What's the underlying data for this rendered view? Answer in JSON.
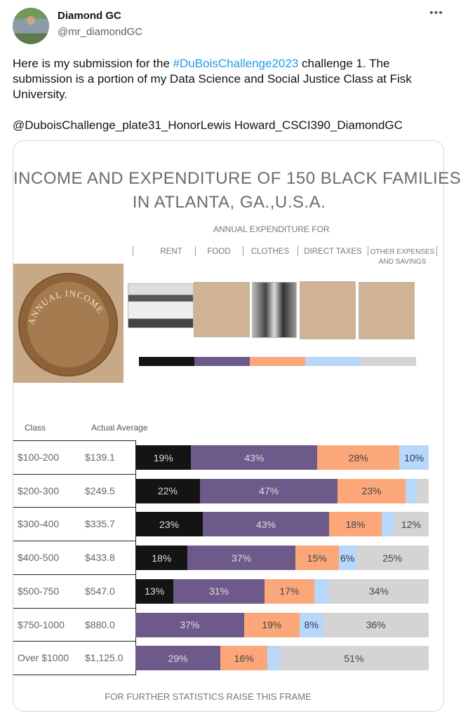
{
  "tweet": {
    "author_name": "Diamond GC",
    "author_handle": "@mr_diamondGC",
    "more_icon": "more-horizontal-icon",
    "text_before": "Here is my submission for the ",
    "hashtag": "#DuBoisChallenge2023",
    "text_after": " challenge 1. The submission is a portion of my Data Science and Social Justice Class at Fisk University.",
    "text_line2": "@DuboisChallenge_plate31_HonorLewis Howard_CSCI390_DiamondGC"
  },
  "colors": {
    "rent": "#141414",
    "food": "#6e5a8a",
    "clothes": "#fba77a",
    "taxes": "#b7d8fb",
    "other": "#d4d4d4"
  },
  "chart_data": {
    "type": "bar",
    "orientation": "horizontal-stacked-100",
    "title_line1": "INCOME AND EXPENDITURE OF 150 BLACK FAMILIES",
    "title_line2": "IN ATLANTA, GA.,U.S.A.",
    "subtitle": "ANNUAL EXPENDITURE FOR",
    "legend": [
      "RENT",
      "FOOD",
      "CLOTHES",
      "DIRECT TAXES",
      "OTHER EXPENSES",
      "AND SAVINGS"
    ],
    "coin_caption": "ANNUAL INCOME",
    "col_class": "Class",
    "col_avg": "Actual Average",
    "footer": "FOR FURTHER STATISTICS RAISE THIS FRAME",
    "series_names": [
      "Rent",
      "Food",
      "Clothes",
      "Direct Taxes",
      "Other Expenses and Savings"
    ],
    "rows": [
      {
        "class": "$100-200",
        "average": "$139.1",
        "values": [
          19,
          43,
          28,
          10,
          0
        ],
        "labels": [
          "19%",
          "43%",
          "28%",
          "10%",
          ""
        ]
      },
      {
        "class": "$200-300",
        "average": "$249.5",
        "values": [
          22,
          47,
          23,
          4,
          4
        ],
        "labels": [
          "22%",
          "47%",
          "23%",
          "",
          ""
        ]
      },
      {
        "class": "$300-400",
        "average": "$335.7",
        "values": [
          23,
          43,
          18,
          4,
          12
        ],
        "labels": [
          "23%",
          "43%",
          "18%",
          "",
          "12%"
        ]
      },
      {
        "class": "$400-500",
        "average": "$433.8",
        "values": [
          18,
          37,
          15,
          6,
          25
        ],
        "labels": [
          "18%",
          "37%",
          "15%",
          "6%",
          "25%"
        ]
      },
      {
        "class": "$500-750",
        "average": "$547.0",
        "values": [
          13,
          31,
          17,
          5,
          34
        ],
        "labels": [
          "13%",
          "31%",
          "17%",
          "",
          "34%"
        ]
      },
      {
        "class": "$750-1000",
        "average": "$880.0",
        "values": [
          0,
          37,
          19,
          8,
          36
        ],
        "labels": [
          "",
          "37%",
          "19%",
          "8%",
          "36%"
        ]
      },
      {
        "class": "Over $1000",
        "average": "$1,125.0",
        "values": [
          0,
          29,
          16,
          4,
          51
        ],
        "labels": [
          "",
          "29%",
          "16%",
          "",
          "51%"
        ]
      }
    ]
  }
}
